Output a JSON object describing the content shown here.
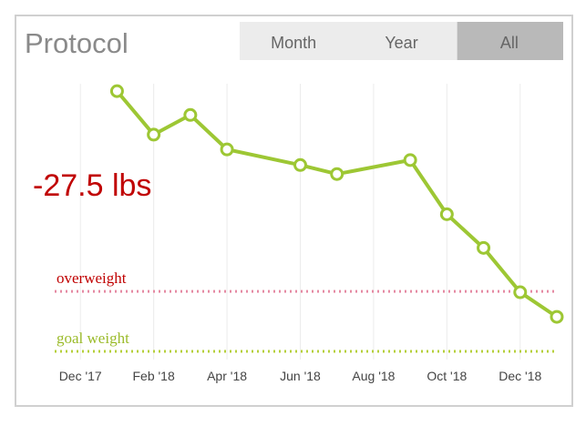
{
  "title": "Protocol",
  "tabs": [
    "Month",
    "Year",
    "All"
  ],
  "active_tab": 2,
  "chart_data": {
    "type": "line",
    "annotation": "-27.5 lbs",
    "x": [
      1,
      2,
      3,
      4,
      6,
      7,
      9,
      10,
      11,
      12,
      13
    ],
    "series": [
      {
        "color": "#9dc734",
        "values": [
          0,
          -5.3,
          -2.9,
          -7.1,
          -9.0,
          -10.1,
          -8.4,
          -15.0,
          -19.1,
          -24.5,
          -27.5
        ]
      }
    ],
    "xlim": [
      -1,
      13.1
    ],
    "xticks": [
      {
        "value": 0,
        "label": "Dec '17"
      },
      {
        "value": 2,
        "label": "Feb '18"
      },
      {
        "value": 4,
        "label": "Apr '18"
      },
      {
        "value": 6,
        "label": "Jun '18"
      },
      {
        "value": 8,
        "label": "Aug '18"
      },
      {
        "value": 10,
        "label": "Oct '18"
      },
      {
        "value": 12,
        "label": "Dec '18"
      }
    ],
    "ylim": [
      -32.7,
      0.9
    ],
    "grid": true,
    "reference_lines": [
      {
        "label": "overweight",
        "value": -24.4,
        "color": "#e58aa3",
        "label_color": "#c00000"
      },
      {
        "label": "goal weight",
        "value": -31.7,
        "color": "#b5cf3a",
        "label_color": "#9bbb2a"
      }
    ]
  }
}
